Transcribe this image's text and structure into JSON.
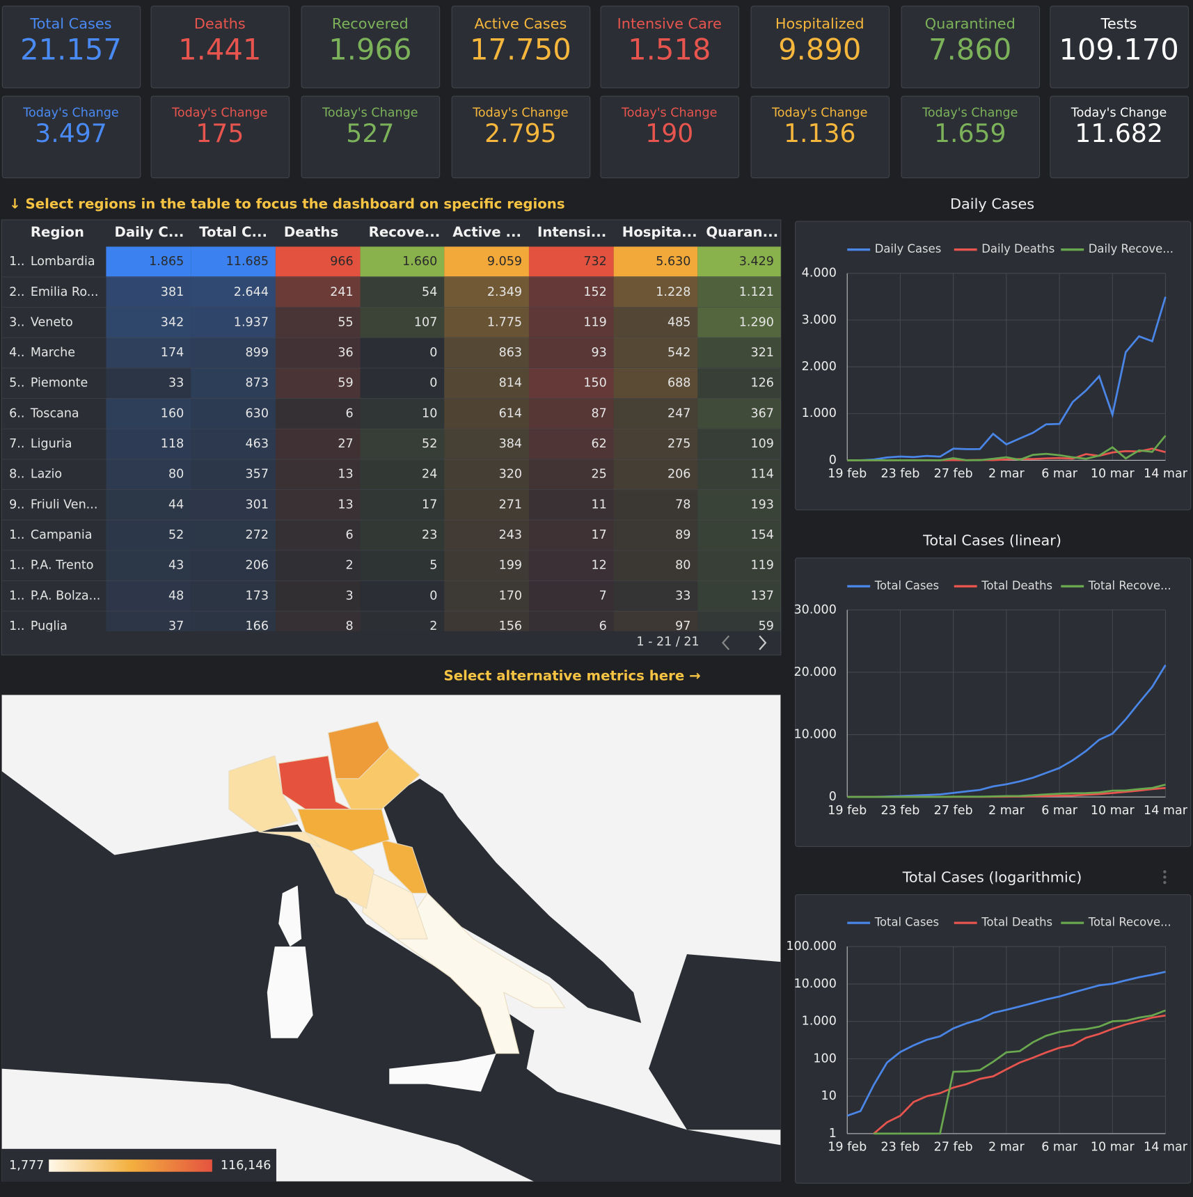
{
  "kpis": [
    {
      "label": "Total Cases",
      "value": "21.157",
      "change_label": "Today's Change",
      "change": "3.497",
      "color": "#4a8af4"
    },
    {
      "label": "Deaths",
      "value": "1.441",
      "change_label": "Today's Change",
      "change": "175",
      "color": "#e8554e"
    },
    {
      "label": "Recovered",
      "value": "1.966",
      "change_label": "Today's Change",
      "change": "527",
      "color": "#7cb35a"
    },
    {
      "label": "Active Cases",
      "value": "17.750",
      "change_label": "Today's Change",
      "change": "2.795",
      "color": "#f6b73c"
    },
    {
      "label": "Intensive Care",
      "value": "1.518",
      "change_label": "Today's Change",
      "change": "190",
      "color": "#e8554e"
    },
    {
      "label": "Hospitalized",
      "value": "9.890",
      "change_label": "Today's Change",
      "change": "1.136",
      "color": "#f6b73c"
    },
    {
      "label": "Quarantined",
      "value": "7.860",
      "change_label": "Today's Change",
      "change": "1.659",
      "color": "#7cb35a"
    },
    {
      "label": "Tests",
      "value": "109.170",
      "change_label": "Today's Change",
      "change": "11.682",
      "color": "#ffffff"
    }
  ],
  "hints": {
    "table": "↓ Select regions in the table to focus the dashboard on specific regions",
    "metrics": "Select alternative metrics here →"
  },
  "table": {
    "headers": [
      "Region",
      "Daily C...",
      "Total C...",
      "Deaths",
      "Recove...",
      "Active ...",
      "Intensi...",
      "Hospita...",
      "Quaran..."
    ],
    "column_colors": [
      "#3b82f0",
      "#3b82f0",
      "#e2523f",
      "#8ab24c",
      "#f3a93a",
      "#e2523f",
      "#f3a93a",
      "#8ab24c"
    ],
    "rows": [
      [
        "1..",
        "Lombardia",
        "1.865",
        "11.685",
        "966",
        "1.660",
        "9.059",
        "732",
        "5.630",
        "3.429"
      ],
      [
        "2..",
        "Emilia Ro...",
        "381",
        "2.644",
        "241",
        "54",
        "2.349",
        "152",
        "1.228",
        "1.121"
      ],
      [
        "3..",
        "Veneto",
        "342",
        "1.937",
        "55",
        "107",
        "1.775",
        "119",
        "485",
        "1.290"
      ],
      [
        "4..",
        "Marche",
        "174",
        "899",
        "36",
        "0",
        "863",
        "93",
        "542",
        "321"
      ],
      [
        "5..",
        "Piemonte",
        "33",
        "873",
        "59",
        "0",
        "814",
        "150",
        "688",
        "126"
      ],
      [
        "6..",
        "Toscana",
        "160",
        "630",
        "6",
        "10",
        "614",
        "87",
        "247",
        "367"
      ],
      [
        "7..",
        "Liguria",
        "118",
        "463",
        "27",
        "52",
        "384",
        "62",
        "275",
        "109"
      ],
      [
        "8..",
        "Lazio",
        "80",
        "357",
        "13",
        "24",
        "320",
        "25",
        "206",
        "114"
      ],
      [
        "9..",
        "Friuli Ven...",
        "44",
        "301",
        "13",
        "17",
        "271",
        "11",
        "78",
        "193"
      ],
      [
        "1..",
        "Campania",
        "52",
        "272",
        "6",
        "23",
        "243",
        "17",
        "89",
        "154"
      ],
      [
        "1..",
        "P.A. Trento",
        "43",
        "206",
        "2",
        "5",
        "199",
        "12",
        "80",
        "119"
      ],
      [
        "1..",
        "P.A. Bolza...",
        "48",
        "173",
        "3",
        "0",
        "170",
        "7",
        "33",
        "137"
      ],
      [
        "1..",
        "Puglia",
        "37",
        "166",
        "8",
        "2",
        "156",
        "6",
        "97",
        "59"
      ]
    ],
    "pagination": "1 - 21 / 21"
  },
  "map_legend": {
    "min": "1,777",
    "max": "116,146"
  },
  "chart_data": [
    {
      "type": "line",
      "title": "Daily Cases",
      "categories": [
        "19 feb",
        null,
        null,
        null,
        "23 feb",
        null,
        null,
        null,
        "27 feb",
        null,
        null,
        null,
        "2 mar",
        null,
        null,
        null,
        "6 mar",
        null,
        null,
        null,
        "10 mar",
        null,
        null,
        null,
        "14 mar"
      ],
      "series": [
        {
          "name": "Daily Cases",
          "color": "#4a86e8",
          "values": [
            0,
            0,
            16,
            60,
            80,
            70,
            93,
            78,
            250,
            238,
            240,
            566,
            342,
            466,
            587,
            769,
            778,
            1247,
            1492,
            1797,
            977,
            2313,
            2651,
            2547,
            3497
          ]
        },
        {
          "name": "Daily Deaths",
          "color": "#e8554e",
          "values": [
            0,
            0,
            1,
            1,
            1,
            4,
            3,
            2,
            5,
            4,
            8,
            5,
            18,
            27,
            28,
            41,
            49,
            36,
            133,
            97,
            168,
            196,
            189,
            250,
            175
          ]
        },
        {
          "name": "Daily Recove...",
          "color": "#6aa84f",
          "values": [
            0,
            0,
            0,
            0,
            0,
            0,
            0,
            0,
            45,
            1,
            4,
            33,
            66,
            11,
            116,
            138,
            109,
            66,
            33,
            102,
            280,
            41,
            213,
            181,
            527
          ]
        }
      ],
      "ylim": [
        0,
        4000
      ],
      "yticks": [
        0,
        {
          "value": 1000,
          "label": "1.000"
        },
        {
          "value": 2000,
          "label": "2.000"
        },
        {
          "value": 3000,
          "label": "3.000"
        },
        {
          "value": 4000,
          "label": "4.000"
        }
      ],
      "grid": true,
      "log_scale": false
    },
    {
      "type": "line",
      "title": "Total Cases (linear)",
      "categories": [
        "19 feb",
        null,
        null,
        null,
        "23 feb",
        null,
        null,
        null,
        "27 feb",
        null,
        null,
        null,
        "2 mar",
        null,
        null,
        null,
        "6 mar",
        null,
        null,
        null,
        "10 mar",
        null,
        null,
        null,
        "14 mar"
      ],
      "series": [
        {
          "name": "Total Cases",
          "color": "#4a86e8",
          "values": [
            3,
            4,
            20,
            79,
            152,
            229,
            322,
            400,
            650,
            888,
            1128,
            1694,
            2036,
            2502,
            3089,
            3858,
            4636,
            5883,
            7375,
            9172,
            10149,
            12462,
            15113,
            17660,
            21157
          ]
        },
        {
          "name": "Total Deaths",
          "color": "#e8554e",
          "values": [
            0,
            0,
            1,
            2,
            3,
            7,
            10,
            12,
            17,
            21,
            29,
            34,
            52,
            79,
            107,
            148,
            197,
            233,
            366,
            463,
            631,
            827,
            1016,
            1266,
            1441
          ]
        },
        {
          "name": "Total Recove...",
          "color": "#6aa84f",
          "values": [
            0,
            0,
            0,
            0,
            0,
            0,
            0,
            0,
            45,
            46,
            50,
            83,
            149,
            160,
            276,
            414,
            523,
            589,
            622,
            724,
            1004,
            1045,
            1258,
            1439,
            1966
          ]
        }
      ],
      "ylim": [
        0,
        30000
      ],
      "yticks": [
        0,
        {
          "value": 10000,
          "label": "10.000"
        },
        {
          "value": 20000,
          "label": "20.000"
        },
        {
          "value": 30000,
          "label": "30.000"
        }
      ],
      "grid": true,
      "log_scale": false
    },
    {
      "type": "line",
      "title": "Total Cases (logarithmic)",
      "categories": [
        "19 feb",
        null,
        null,
        null,
        "23 feb",
        null,
        null,
        null,
        "27 feb",
        null,
        null,
        null,
        "2 mar",
        null,
        null,
        null,
        "6 mar",
        null,
        null,
        null,
        "10 mar",
        null,
        null,
        null,
        "14 mar"
      ],
      "series": [
        {
          "name": "Total Cases",
          "color": "#4a86e8",
          "values": [
            3,
            4,
            20,
            79,
            152,
            229,
            322,
            400,
            650,
            888,
            1128,
            1694,
            2036,
            2502,
            3089,
            3858,
            4636,
            5883,
            7375,
            9172,
            10149,
            12462,
            15113,
            17660,
            21157
          ]
        },
        {
          "name": "Total Deaths",
          "color": "#e8554e",
          "values": [
            null,
            null,
            1,
            2,
            3,
            7,
            10,
            12,
            17,
            21,
            29,
            34,
            52,
            79,
            107,
            148,
            197,
            233,
            366,
            463,
            631,
            827,
            1016,
            1266,
            1441
          ]
        },
        {
          "name": "Total Recove...",
          "color": "#6aa84f",
          "values": [
            null,
            null,
            1,
            1,
            1,
            1,
            1,
            1,
            45,
            46,
            50,
            83,
            149,
            160,
            276,
            414,
            523,
            589,
            622,
            724,
            1004,
            1045,
            1258,
            1439,
            1966
          ]
        }
      ],
      "ylim": [
        1,
        100000
      ],
      "yticks": [
        1,
        10,
        100,
        {
          "value": 1000,
          "label": "1.000"
        },
        {
          "value": 10000,
          "label": "10.000"
        },
        {
          "value": 100000,
          "label": "100.000"
        }
      ],
      "grid": true,
      "log_scale": true
    }
  ]
}
